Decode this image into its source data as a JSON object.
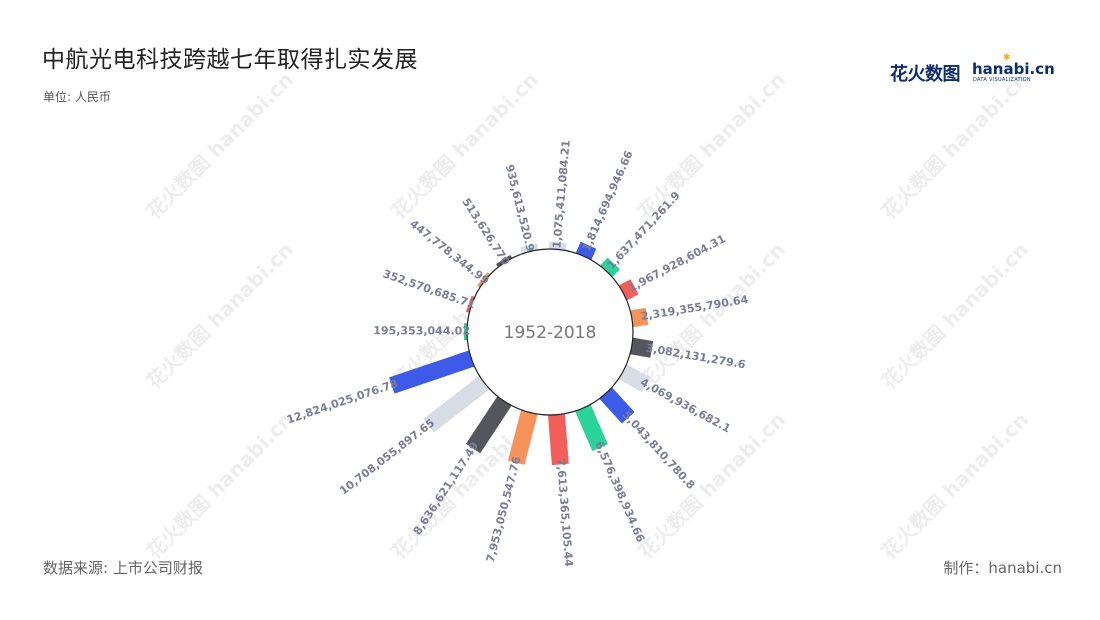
{
  "title": "中航光电科技跨越七年取得扎实发展",
  "unit_label": "单位: 人民币",
  "source": "数据来源: 上市公司财报",
  "credit": "制作：hanabi.cn",
  "logo": {
    "cn_text": "花火数图",
    "en_text": "hanabi.cn",
    "sub_text": "DATA VISUALIZATION"
  },
  "watermark_text": "花火数图 hanabi.cn",
  "chart_data": {
    "type": "bar",
    "layout": "radial",
    "center_label": "1952-2018",
    "values": [
      1075411084.21,
      1814694946.66,
      1637471261.9,
      1967928604.31,
      2319355790.64,
      3082131279.6,
      4069936682.1,
      5043810780.8,
      6576398934.66,
      7613365105.44,
      7953050547.76,
      8636621117.49,
      10708055897.65,
      12824025076.78,
      195353044.02,
      352570685.71,
      447778344.99,
      513626770,
      935613520.9
    ],
    "labels": [
      "1,075,411,084.21",
      "1,814,694,946.66",
      "1,637,471,261.9",
      "1,967,928,604.31",
      "2,319,355,790.64",
      "3,082,131,279.6",
      "4,069,936,682.1",
      "5,043,810,780.8",
      "6,576,398,934.66",
      "7,613,365,105.44",
      "7,953,050,547.76",
      "8,636,621,117.49",
      "10,708,055,897.65",
      "12,824,025,076.78",
      "195,353,044.02",
      "352,570,685.71",
      "447,778,344.99",
      "513,626,770",
      "935,613,520.9"
    ],
    "colors": [
      "#d7dce5",
      "#3d5be8",
      "#2ad39a",
      "#f25e59",
      "#f5935a",
      "#55565c"
    ]
  }
}
